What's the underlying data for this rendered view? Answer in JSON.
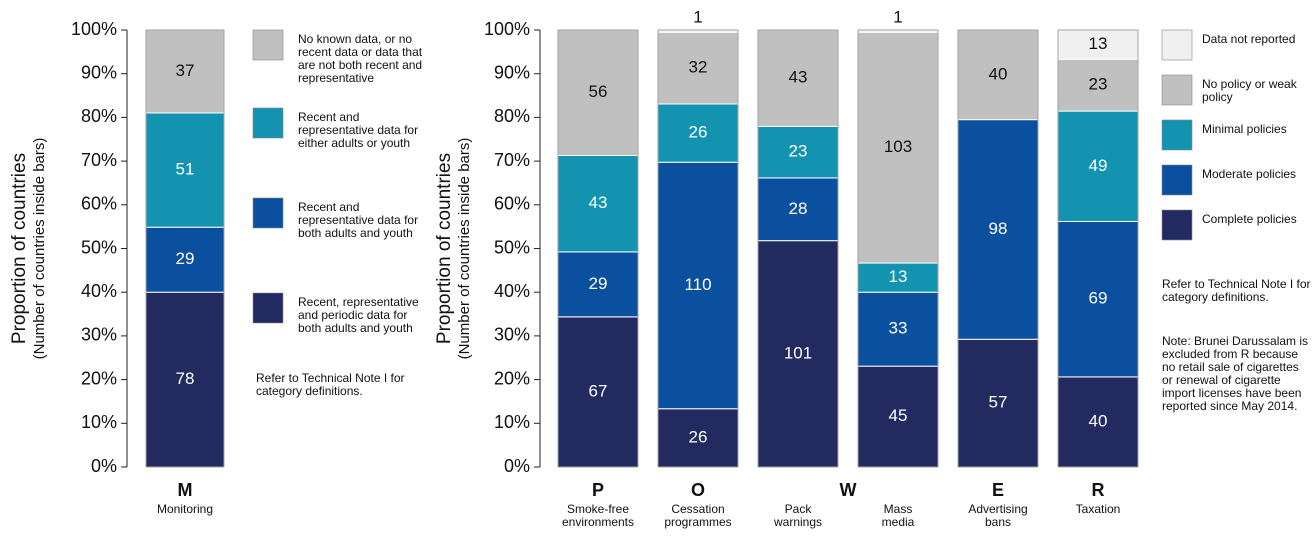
{
  "chart_data": [
    {
      "type": "bar",
      "stacking": "percent",
      "y_label": [
        "Proportion of countries",
        "(Number of countries inside bars)"
      ],
      "categories": [
        "Monitoring"
      ],
      "category_letters": [
        "M"
      ],
      "series": [
        {
          "name": "Recent, representative and periodic data for both adults and youth",
          "color": "#232a5f",
          "values": [
            78
          ]
        },
        {
          "name": "Recent and representative data for both adults and youth",
          "color": "#0b4f9f",
          "values": [
            29
          ]
        },
        {
          "name": "Recent and representative data for either adults or youth",
          "color": "#1493b1",
          "values": [
            51
          ]
        },
        {
          "name": "No known data, or no recent data or data that are not both recent and representative",
          "color": "#c0c0c0",
          "values": [
            37
          ]
        }
      ],
      "ylim": [
        0,
        100
      ],
      "yticks": [
        {
          "value": 0,
          "label": "0%"
        },
        {
          "value": 10,
          "label": "10%"
        },
        {
          "value": 20,
          "label": "20%"
        },
        {
          "value": 30,
          "label": "30%"
        },
        {
          "value": 40,
          "label": "40%"
        },
        {
          "value": 50,
          "label": "50%"
        },
        {
          "value": 60,
          "label": "60%"
        },
        {
          "value": 70,
          "label": "70%"
        },
        {
          "value": 80,
          "label": "80%"
        },
        {
          "value": 90,
          "label": "90%"
        },
        {
          "value": 100,
          "label": "100%"
        }
      ],
      "legend": "right",
      "notes": [
        "Refer to Technical Note I for category definitions."
      ]
    },
    {
      "type": "bar",
      "stacking": "percent",
      "y_label": [
        "Proportion of countries",
        "(Number of countries inside bars)"
      ],
      "categories": [
        "Smoke-free\nenvironments",
        "Cessation\nprogrammes",
        "Pack\nwarnings",
        "Mass\nmedia",
        "Advertising\nbans",
        "Taxation"
      ],
      "category_letters": [
        "P",
        "O",
        "W",
        null,
        "E",
        "R"
      ],
      "series": [
        {
          "name": "Complete policies",
          "color": "#232a5f",
          "values": [
            67,
            26,
            101,
            45,
            57,
            40
          ]
        },
        {
          "name": "Moderate policies",
          "color": "#0b4f9f",
          "values": [
            29,
            110,
            28,
            33,
            98,
            69
          ]
        },
        {
          "name": "Minimal policies",
          "color": "#1493b1",
          "values": [
            43,
            26,
            23,
            13,
            null,
            49
          ]
        },
        {
          "name": "No policy or weak policy",
          "color": "#c0c0c0",
          "values": [
            56,
            32,
            43,
            103,
            40,
            23
          ]
        },
        {
          "name": "Data not reported",
          "color": "#f0f0f0",
          "values": [
            null,
            1,
            null,
            1,
            null,
            13
          ]
        }
      ],
      "ylim": [
        0,
        100
      ],
      "yticks": [
        {
          "value": 0,
          "label": "0%"
        },
        {
          "value": 10,
          "label": "10%"
        },
        {
          "value": 20,
          "label": "20%"
        },
        {
          "value": 30,
          "label": "30%"
        },
        {
          "value": 40,
          "label": "40%"
        },
        {
          "value": 50,
          "label": "50%"
        },
        {
          "value": 60,
          "label": "60%"
        },
        {
          "value": 70,
          "label": "70%"
        },
        {
          "value": 80,
          "label": "80%"
        },
        {
          "value": 90,
          "label": "90%"
        },
        {
          "value": 100,
          "label": "100%"
        }
      ],
      "legend": "right",
      "notes": [
        "Refer to Technical Note I for category definitions.",
        "Note: Brunei Darussalam is excluded from R because no retail sale of cigarettes or renewal of cigarette import licenses have been reported since May 2014."
      ]
    }
  ]
}
